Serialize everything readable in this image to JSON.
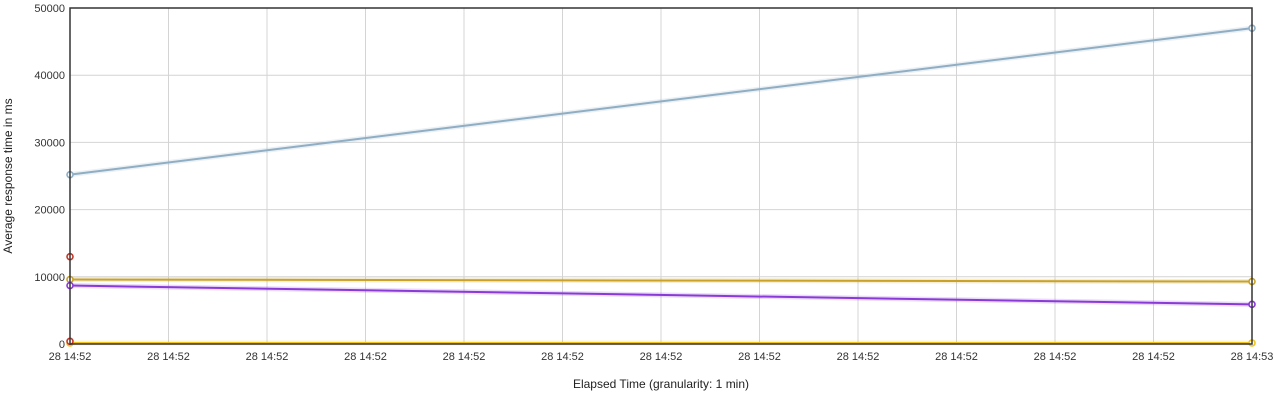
{
  "chart_data": {
    "type": "line",
    "xlabel": "Elapsed Time (granularity: 1 min)",
    "ylabel": "Average response time in ms",
    "ylim": [
      0,
      50000
    ],
    "yticks": [
      0,
      10000,
      20000,
      30000,
      40000,
      50000
    ],
    "x_tick_labels": [
      "28 14:52",
      "28 14:52",
      "28 14:52",
      "28 14:52",
      "28 14:52",
      "28 14:52",
      "28 14:52",
      "28 14:52",
      "28 14:52",
      "28 14:52",
      "28 14:52",
      "28 14:52",
      "28 14:53"
    ],
    "grid": true,
    "legend": "none",
    "series": [
      {
        "color": "#8faec4",
        "points": [
          [
            0,
            25200
          ],
          [
            12,
            47000
          ]
        ]
      },
      {
        "color": "#c9a227",
        "points": [
          [
            0,
            9600
          ],
          [
            12,
            9300
          ]
        ]
      },
      {
        "color": "#8a3ad6",
        "points": [
          [
            0,
            8700
          ],
          [
            12,
            5900
          ]
        ]
      },
      {
        "color": "#f0c419",
        "points": [
          [
            0,
            150
          ],
          [
            12,
            150
          ]
        ]
      },
      {
        "color": "#c0392b",
        "points": [
          [
            0,
            13000
          ]
        ]
      },
      {
        "color": "#c0392b",
        "points": [
          [
            0,
            400
          ]
        ]
      }
    ]
  }
}
